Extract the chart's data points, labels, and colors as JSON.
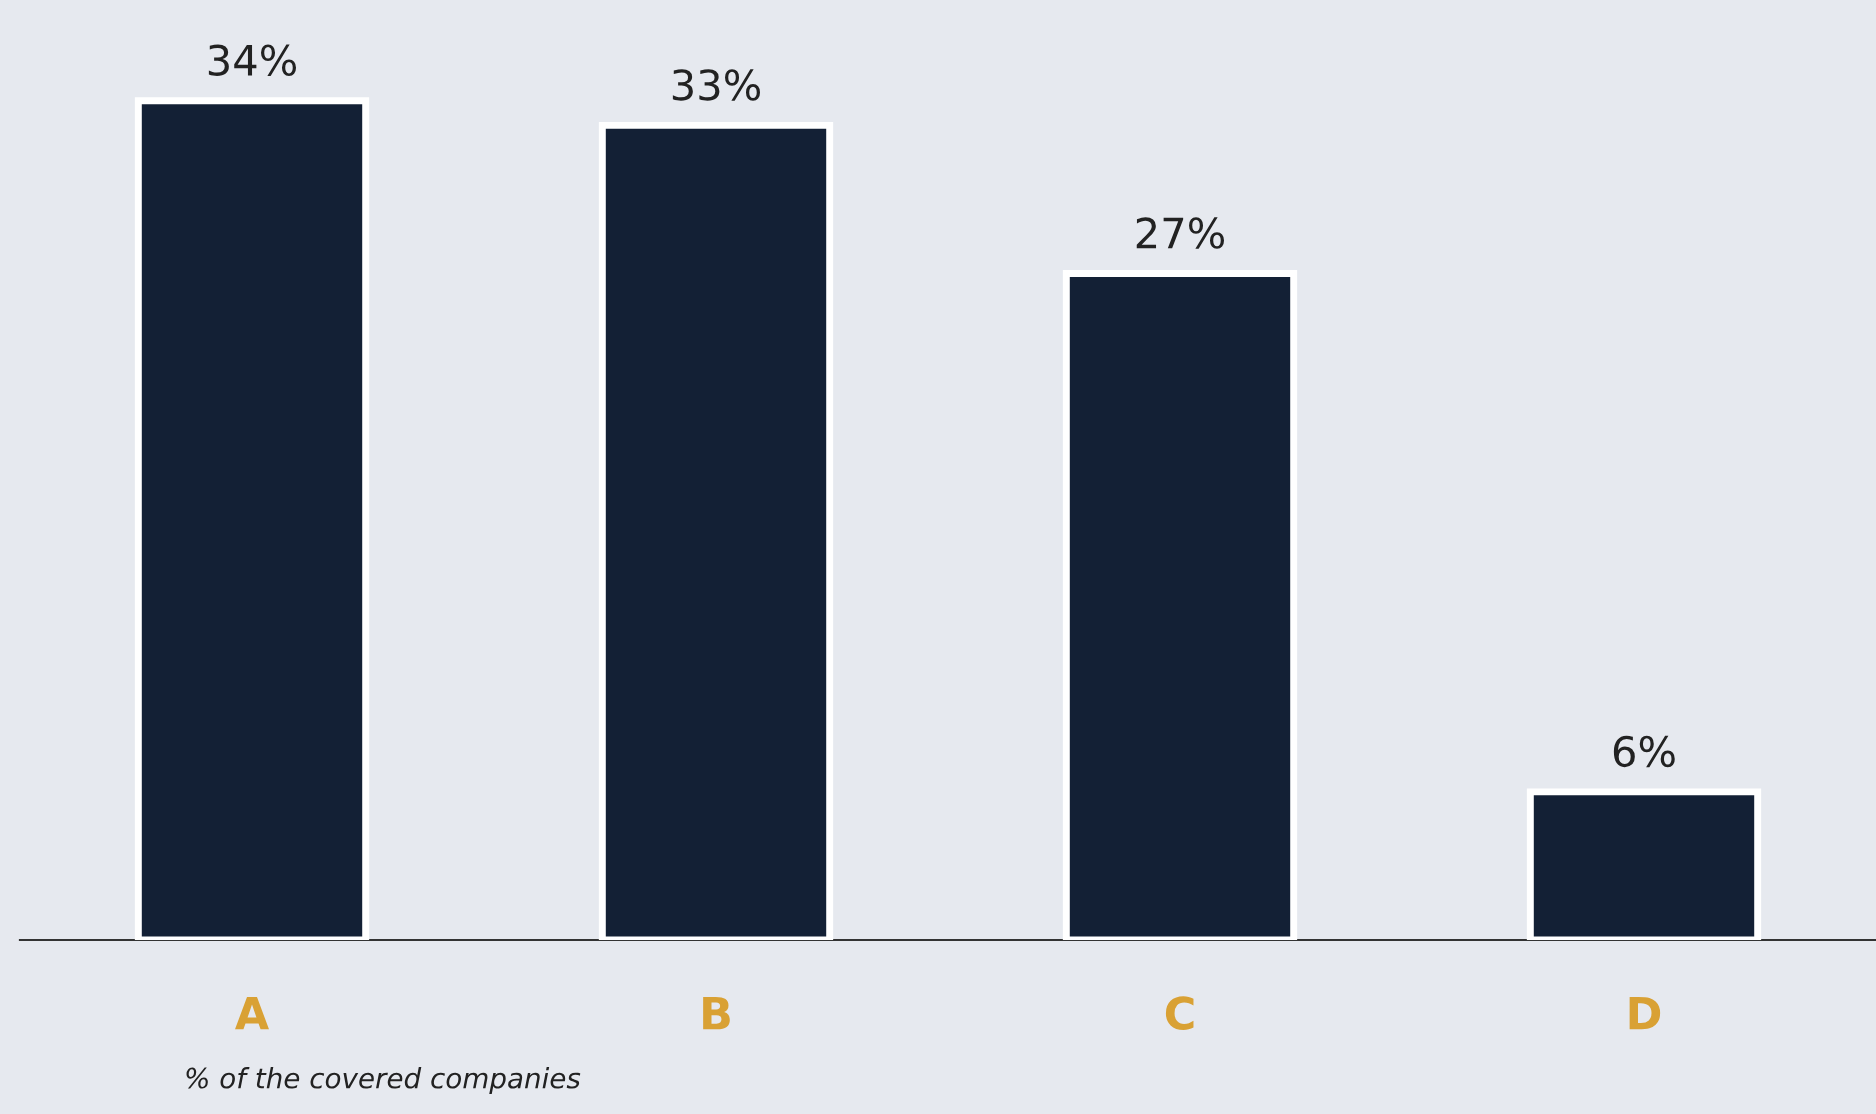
{
  "chart_data": {
    "type": "bar",
    "categories": [
      "A",
      "B",
      "C",
      "D"
    ],
    "values": [
      34,
      33,
      27,
      6
    ],
    "value_labels": [
      "34%",
      "33%",
      "27%",
      "6%"
    ],
    "color": "#132035",
    "annotations": [
      "% of the covered companies"
    ],
    "grid": false,
    "legend": false
  }
}
